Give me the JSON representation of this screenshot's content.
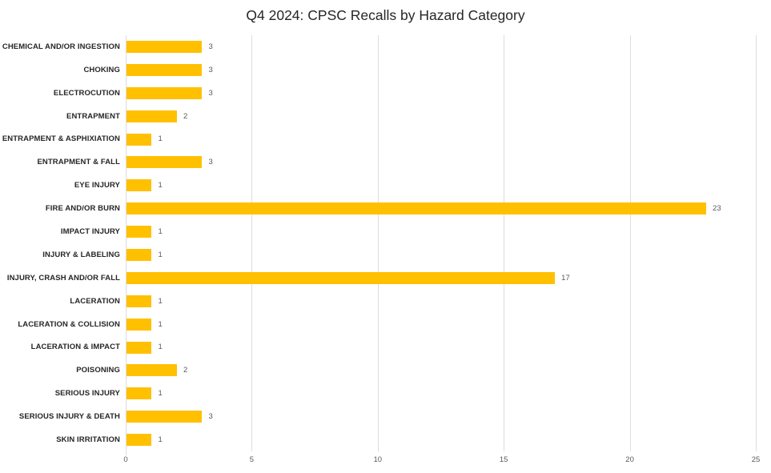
{
  "chart_data": {
    "type": "bar",
    "orientation": "horizontal",
    "title": "Q4 2024: CPSC Recalls by Hazard Category",
    "categories": [
      "CHEMICAL AND/OR INGESTION",
      "CHOKING",
      "ELECTROCUTION",
      "ENTRAPMENT",
      "ENTRAPMENT & ASPHIXIATION",
      "ENTRAPMENT & FALL",
      "EYE INJURY",
      "FIRE AND/OR BURN",
      "IMPACT INJURY",
      "INJURY & LABELING",
      "INJURY, CRASH AND/OR FALL",
      "LACERATION",
      "LACERATION & COLLISION",
      "LACERATION & IMPACT",
      "POISONING",
      "SERIOUS INJURY",
      "SERIOUS INJURY & DEATH",
      "SKIN IRRITATION"
    ],
    "values": [
      3,
      3,
      3,
      2,
      1,
      3,
      1,
      23,
      1,
      1,
      17,
      1,
      1,
      1,
      2,
      1,
      3,
      1
    ],
    "xlabel": "",
    "ylabel": "",
    "xlim": [
      0,
      25
    ],
    "xticks": [
      0,
      5,
      10,
      15,
      20,
      25
    ],
    "grid": "vertical",
    "data_labels": true,
    "legend": "none",
    "colors": {
      "bar": "#FFC000",
      "title": "#262626",
      "category_label": "#262626",
      "value_label": "#595959",
      "tick_label": "#595959",
      "gridline": "#E4DBDB",
      "background": "#FFFFFF"
    }
  }
}
